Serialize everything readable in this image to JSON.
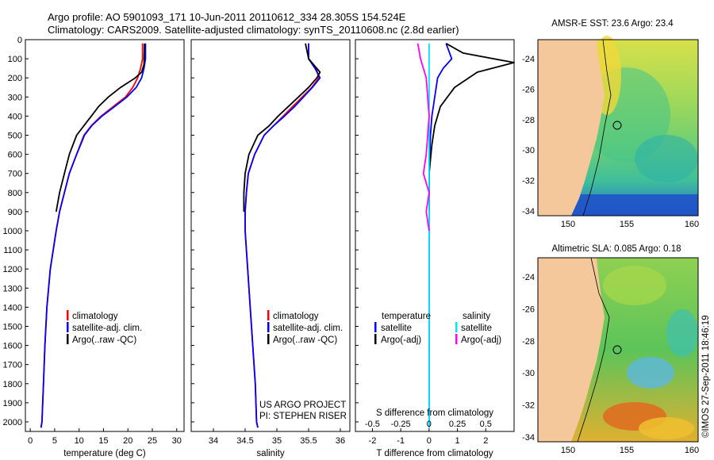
{
  "header": {
    "line1": "Argo profile: AO 5901093_171 10-Jun-2011 20110612_334 28.305S 154.524E",
    "line2": "Climatology: CARS2009. Satellite-adjusted climatology: synTS_20110608.nc (2.8d earlier)"
  },
  "depth_axis": {
    "min": 0,
    "max": 2050,
    "ticks": [
      0,
      100,
      200,
      300,
      400,
      500,
      600,
      700,
      800,
      900,
      1000,
      1100,
      1200,
      1300,
      1400,
      1500,
      1600,
      1700,
      1800,
      1900,
      2000
    ]
  },
  "chart_data": [
    {
      "type": "line",
      "panel": "temperature",
      "xlabel": "temperature (deg C)",
      "xlim": [
        -1,
        31.5
      ],
      "xticks": [
        0,
        5,
        10,
        15,
        20,
        25,
        30
      ],
      "ylim": [
        2050,
        0
      ],
      "legend": [
        "climatology",
        "satellite-adj. clim.",
        "Argo(..raw -QC)"
      ],
      "series": [
        {
          "name": "climatology",
          "color": "#ff0000",
          "x": [
            23.0,
            23.0,
            22.6,
            22.0,
            21.0,
            19.5,
            17.0,
            14.5,
            12.5,
            11.0,
            9.5,
            8.0,
            7.0,
            6.0,
            5.3,
            4.7,
            4.1,
            3.4,
            3.0,
            2.7,
            2.4,
            2.2
          ],
          "y": [
            20,
            100,
            150,
            200,
            250,
            300,
            350,
            400,
            450,
            500,
            600,
            700,
            800,
            900,
            1000,
            1100,
            1200,
            1400,
            1600,
            1800,
            2000,
            2030
          ]
        },
        {
          "name": "satellite-adj. clim.",
          "color": "#0000ff",
          "x": [
            23.6,
            23.6,
            23.3,
            22.8,
            21.7,
            19.8,
            17.3,
            14.7,
            12.6,
            11.1,
            9.5,
            8.0,
            7.0,
            6.0,
            5.3,
            4.7,
            4.1,
            3.4,
            3.0,
            2.7,
            2.4,
            2.2
          ],
          "y": [
            20,
            100,
            150,
            200,
            250,
            300,
            350,
            400,
            450,
            500,
            600,
            700,
            800,
            900,
            1000,
            1100,
            1200,
            1400,
            1600,
            1800,
            2000,
            2030
          ]
        },
        {
          "name": "Argo(..raw -QC)",
          "color": "#000000",
          "x": [
            23.4,
            23.3,
            22.8,
            21.5,
            18.5,
            16.0,
            14.0,
            12.5,
            11.0,
            9.5,
            8.0,
            7.0,
            6.0,
            5.3
          ],
          "y": [
            20,
            130,
            170,
            200,
            250,
            300,
            350,
            400,
            450,
            500,
            600,
            700,
            800,
            900
          ]
        }
      ]
    },
    {
      "type": "line",
      "panel": "salinity",
      "xlabel": "salinity",
      "xlim": [
        33.65,
        36.15
      ],
      "xticks": [
        34,
        34.5,
        35,
        35.5,
        36
      ],
      "ylim": [
        2050,
        0
      ],
      "legend": [
        "climatology",
        "satellite-adj. clim.",
        "Argo(..raw -QC)"
      ],
      "series": [
        {
          "name": "climatology",
          "color": "#ff0000",
          "x": [
            35.5,
            35.5,
            35.62,
            35.66,
            35.55,
            35.4,
            35.25,
            35.1,
            34.95,
            34.8,
            34.65,
            34.55,
            34.52,
            34.5,
            34.5,
            34.54,
            34.58,
            34.62,
            34.66,
            34.68,
            34.7
          ],
          "y": [
            20,
            100,
            150,
            200,
            250,
            300,
            350,
            400,
            450,
            500,
            600,
            700,
            800,
            900,
            1000,
            1200,
            1400,
            1600,
            1800,
            2000,
            2030
          ]
        },
        {
          "name": "satellite-adj. clim.",
          "color": "#0000ff",
          "x": [
            35.5,
            35.5,
            35.6,
            35.68,
            35.56,
            35.42,
            35.28,
            35.12,
            34.95,
            34.8,
            34.65,
            34.55,
            34.52,
            34.5,
            34.5,
            34.54,
            34.58,
            34.62,
            34.66,
            34.68,
            34.7
          ],
          "y": [
            20,
            100,
            150,
            200,
            250,
            300,
            350,
            400,
            450,
            500,
            600,
            700,
            800,
            900,
            1000,
            1200,
            1400,
            1600,
            1800,
            2000,
            2030
          ]
        },
        {
          "name": "Argo(..raw -QC)",
          "color": "#000000",
          "x": [
            35.45,
            35.5,
            35.68,
            35.63,
            35.5,
            35.34,
            35.18,
            35.02,
            34.88,
            34.7,
            34.56,
            34.5,
            34.48,
            34.48
          ],
          "y": [
            20,
            100,
            170,
            200,
            250,
            300,
            350,
            400,
            450,
            500,
            600,
            700,
            800,
            900
          ]
        }
      ]
    },
    {
      "type": "line",
      "panel": "difference",
      "xlabel": "T difference from climatology",
      "xlim": [
        -2.6,
        3.0
      ],
      "xticks": [
        -2,
        -1,
        0,
        1,
        2
      ],
      "top_axis_label": "S difference from climatology",
      "top_ticks": [
        "-0.5",
        "-0.25",
        "0",
        "0.25",
        "0.5"
      ],
      "ylim": [
        2050,
        0
      ],
      "legend": {
        "temperature": "temperature",
        "salinity": "salinity",
        "items": [
          "satellite",
          "Argo(-adj)",
          "satellite",
          "Argo(-adj)"
        ]
      },
      "series": [
        {
          "name": "T satellite",
          "color": "#0000ff",
          "x": [
            0.6,
            0.8,
            0.5,
            0.3,
            0.2,
            0.1,
            0.05,
            0,
            0,
            0,
            0
          ],
          "y": [
            20,
            100,
            150,
            200,
            300,
            400,
            500,
            700,
            1000,
            1500,
            2030
          ]
        },
        {
          "name": "T Argo(-adj)",
          "color": "#000000",
          "x": [
            0.6,
            1.2,
            3.0,
            1.7,
            0.9,
            0.4,
            0.2,
            0.1,
            0,
            0
          ],
          "y": [
            20,
            70,
            120,
            170,
            250,
            350,
            450,
            550,
            700,
            900
          ]
        },
        {
          "name": "S satellite",
          "color": "#00e5ff",
          "x": [
            0,
            0,
            0,
            0,
            0,
            0
          ],
          "y": [
            20,
            200,
            400,
            800,
            1500,
            2030
          ]
        },
        {
          "name": "S Argo(-adj)",
          "color": "#ff00ff",
          "x": [
            -0.4,
            -0.3,
            -0.1,
            0,
            -0.1,
            -0.2,
            0,
            -0.1,
            0
          ],
          "y": [
            20,
            100,
            200,
            400,
            600,
            700,
            800,
            900,
            1000
          ]
        }
      ]
    }
  ],
  "maps": [
    {
      "title": "AMSR-E SST: 23.6 Argo: 23.4",
      "yticks": [
        "-24",
        "-26",
        "-28",
        "-30",
        "-32",
        "-34"
      ],
      "xticks": [
        "150",
        "155",
        "160"
      ]
    },
    {
      "title": "Altimetric SLA: 0.085 Argo: 0.18",
      "yticks": [
        "-24",
        "-26",
        "-28",
        "-30",
        "-32",
        "-34"
      ],
      "xticks": [
        "150",
        "155",
        "160"
      ]
    }
  ],
  "annotations": {
    "project_line1": "US ARGO PROJECT",
    "project_line2": "PI: STEPHEN RISER",
    "credit": "©IMOS 27-Sep-2011 18:46:19"
  },
  "colors": {
    "land": "#f5c89b",
    "climatology": "#ff0000",
    "satellite": "#0000ff",
    "argo": "#000000",
    "s_sat": "#00e5ff",
    "s_argo": "#ff00ff"
  }
}
